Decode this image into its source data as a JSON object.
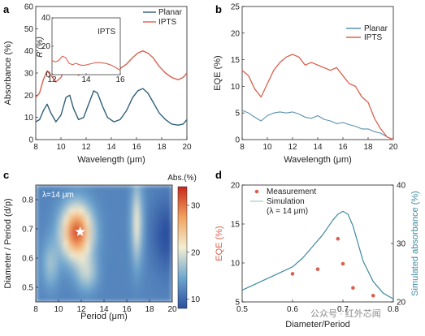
{
  "panel_labels": {
    "a": "a",
    "b": "b",
    "c": "c",
    "d": "d"
  },
  "watermark": "公众号 · 红外芯闻",
  "chart_data": [
    {
      "panel": "a",
      "type": "line",
      "xlabel": "Wavelength (μm)",
      "ylabel": "Absorbance (%)",
      "xlim": [
        8,
        20
      ],
      "ylim": [
        0,
        60
      ],
      "xticks": [
        8,
        10,
        12,
        14,
        16,
        18,
        20
      ],
      "yticks": [
        0,
        10,
        20,
        30,
        40,
        50,
        60
      ],
      "legend_position": "top-right",
      "series": [
        {
          "name": "Planar",
          "color": "#2f5f78",
          "x": [
            8,
            8.3,
            8.6,
            8.9,
            9.2,
            9.6,
            10.0,
            10.4,
            10.7,
            11.0,
            11.4,
            11.8,
            12.2,
            12.6,
            12.9,
            13.3,
            13.7,
            14.2,
            14.7,
            15.2,
            15.7,
            16.1,
            16.5,
            16.9,
            17.3,
            17.8,
            18.3,
            18.8,
            19.3,
            19.7,
            20
          ],
          "y": [
            8,
            9,
            13,
            16,
            12,
            8,
            11,
            19,
            20,
            14,
            9,
            10,
            16,
            22,
            21,
            15,
            10,
            8,
            9,
            13,
            19,
            22,
            23,
            21,
            17,
            12,
            9,
            7,
            6.5,
            7,
            9
          ]
        },
        {
          "name": "IPTS",
          "color": "#d9614e",
          "x": [
            8,
            8.3,
            8.6,
            8.9,
            9.2,
            9.6,
            10.0,
            10.4,
            10.7,
            11.0,
            11.4,
            11.8,
            12.2,
            12.6,
            12.9,
            13.3,
            13.7,
            14.2,
            14.7,
            15.2,
            15.7,
            16.1,
            16.5,
            16.9,
            17.3,
            17.8,
            18.3,
            18.8,
            19.3,
            19.7,
            20
          ],
          "y": [
            19,
            21,
            27,
            31,
            29,
            26,
            28,
            33,
            34,
            31,
            29,
            31,
            35,
            37,
            37,
            34,
            32,
            31,
            32,
            34,
            37,
            39,
            40,
            39,
            37,
            33,
            30,
            28,
            27,
            28,
            30
          ]
        }
      ],
      "inset": {
        "label": "IPTS",
        "xlabel": "λ (μm)",
        "ylabel": "R (%)",
        "xlim": [
          12,
          16
        ],
        "ylim": [
          0,
          40
        ],
        "xticks": [
          12,
          14,
          16
        ],
        "yticks": [
          0,
          20,
          40
        ],
        "series": [
          {
            "name": "IPTS",
            "color": "#d9614e",
            "x": [
              12.0,
              12.2,
              12.4,
              12.6,
              12.8,
              13.0,
              13.2,
              13.4,
              13.6,
              13.8,
              14.0,
              14.2,
              14.4,
              14.6,
              14.8,
              15.0,
              15.2,
              15.4,
              15.6,
              15.8,
              16.0
            ],
            "y": [
              10,
              9,
              10,
              13,
              12,
              8,
              7,
              8,
              7,
              6.5,
              6.8,
              7.5,
              8,
              8.5,
              8.5,
              8.2,
              7.8,
              7,
              6,
              4.5,
              3
            ]
          }
        ]
      }
    },
    {
      "panel": "b",
      "type": "line",
      "xlabel": "Wavelength (μm)",
      "ylabel": "EQE (%)",
      "xlim": [
        8,
        20
      ],
      "ylim": [
        0,
        25
      ],
      "xticks": [
        8,
        10,
        12,
        14,
        16,
        18,
        20
      ],
      "yticks": [
        0,
        5,
        10,
        15,
        20,
        25
      ],
      "legend_position": "top-right",
      "series": [
        {
          "name": "Planar",
          "color": "#5b8fb0",
          "x": [
            8,
            8.5,
            9.0,
            9.5,
            10.0,
            10.5,
            11.0,
            11.5,
            12.0,
            12.5,
            13.0,
            13.5,
            14.0,
            14.5,
            15.0,
            15.5,
            16.0,
            16.5,
            17.0,
            17.5,
            18.0,
            18.5,
            19.0,
            19.5,
            20
          ],
          "y": [
            5.5,
            5.0,
            4.2,
            3.5,
            4.5,
            5.0,
            5.2,
            5.0,
            5.2,
            4.8,
            4.2,
            4.0,
            4.5,
            3.8,
            3.5,
            3.0,
            3.2,
            2.8,
            2.5,
            2.0,
            2.0,
            1.5,
            1.2,
            0.5,
            0
          ]
        },
        {
          "name": "IPTS",
          "color": "#d9614e",
          "x": [
            8,
            8.5,
            9.0,
            9.5,
            10.0,
            10.5,
            11.0,
            11.5,
            12.0,
            12.5,
            13.0,
            13.5,
            14.0,
            14.5,
            15.0,
            15.5,
            16.0,
            16.5,
            17.0,
            17.5,
            18.0,
            18.5,
            19.0,
            19.5,
            20
          ],
          "y": [
            13,
            12,
            9.5,
            8,
            10.5,
            13,
            14.5,
            15.5,
            16,
            15.5,
            14,
            14.5,
            14,
            13.5,
            13,
            13.5,
            12,
            10.5,
            10,
            8,
            7,
            4,
            2,
            0.5,
            0
          ]
        }
      ]
    },
    {
      "panel": "c",
      "type": "heatmap",
      "xlabel": "Period (μm)",
      "ylabel": "Diameter / Period (d/p)",
      "xlim": [
        8,
        20
      ],
      "ylim": [
        0.45,
        0.85
      ],
      "xticks": [
        8,
        10,
        12,
        14,
        16,
        18,
        20
      ],
      "yticks": [
        0.5,
        0.6,
        0.7,
        0.8
      ],
      "annotation": "λ=14 μm",
      "colorbar": {
        "label": "Abs.(%)",
        "ticks": [
          10,
          20,
          30
        ],
        "range": [
          8,
          34
        ],
        "colors": [
          "#2b4f9e",
          "#6fa6cf",
          "#f4eed2",
          "#f2a35f",
          "#c8271b"
        ]
      },
      "marker": {
        "x": 11.9,
        "y": 0.69,
        "symbol": "star"
      },
      "grid": {
        "nx": 25,
        "ny": 21
      }
    },
    {
      "panel": "d",
      "type": "scatter",
      "xlabel": "Diameter/Period",
      "ylabel": "EQE (%)",
      "ylabel_right": "Simulated absorbance (%)",
      "xlim": [
        0.5,
        0.8
      ],
      "ylim": [
        5,
        20
      ],
      "ylim_right": [
        20,
        40
      ],
      "xticks": [
        0.5,
        0.6,
        0.7,
        0.8
      ],
      "yticks": [
        5,
        10,
        15,
        20
      ],
      "yticks_right": [
        20,
        30,
        40
      ],
      "legend": {
        "measurement": "Measurement",
        "simulation": "Simulation",
        "condition": "(λ = 14 μm)"
      },
      "series": [
        {
          "name": "Measurement",
          "color": "#d9614e",
          "axis": "left",
          "x": [
            0.6,
            0.65,
            0.69,
            0.7,
            0.72,
            0.76
          ],
          "y": [
            8.6,
            9.2,
            13.1,
            9.9,
            6.8,
            5.8
          ]
        },
        {
          "name": "Simulation",
          "color": "#3f8aa0",
          "axis": "right",
          "x": [
            0.5,
            0.55,
            0.6,
            0.62,
            0.64,
            0.66,
            0.68,
            0.69,
            0.7,
            0.71,
            0.72,
            0.73,
            0.74,
            0.76,
            0.78,
            0.8
          ],
          "y": [
            22,
            24,
            26,
            27.5,
            29.5,
            31.5,
            34,
            35,
            35.5,
            35,
            33,
            30,
            27,
            23.5,
            21.5,
            20.5
          ]
        }
      ]
    }
  ]
}
